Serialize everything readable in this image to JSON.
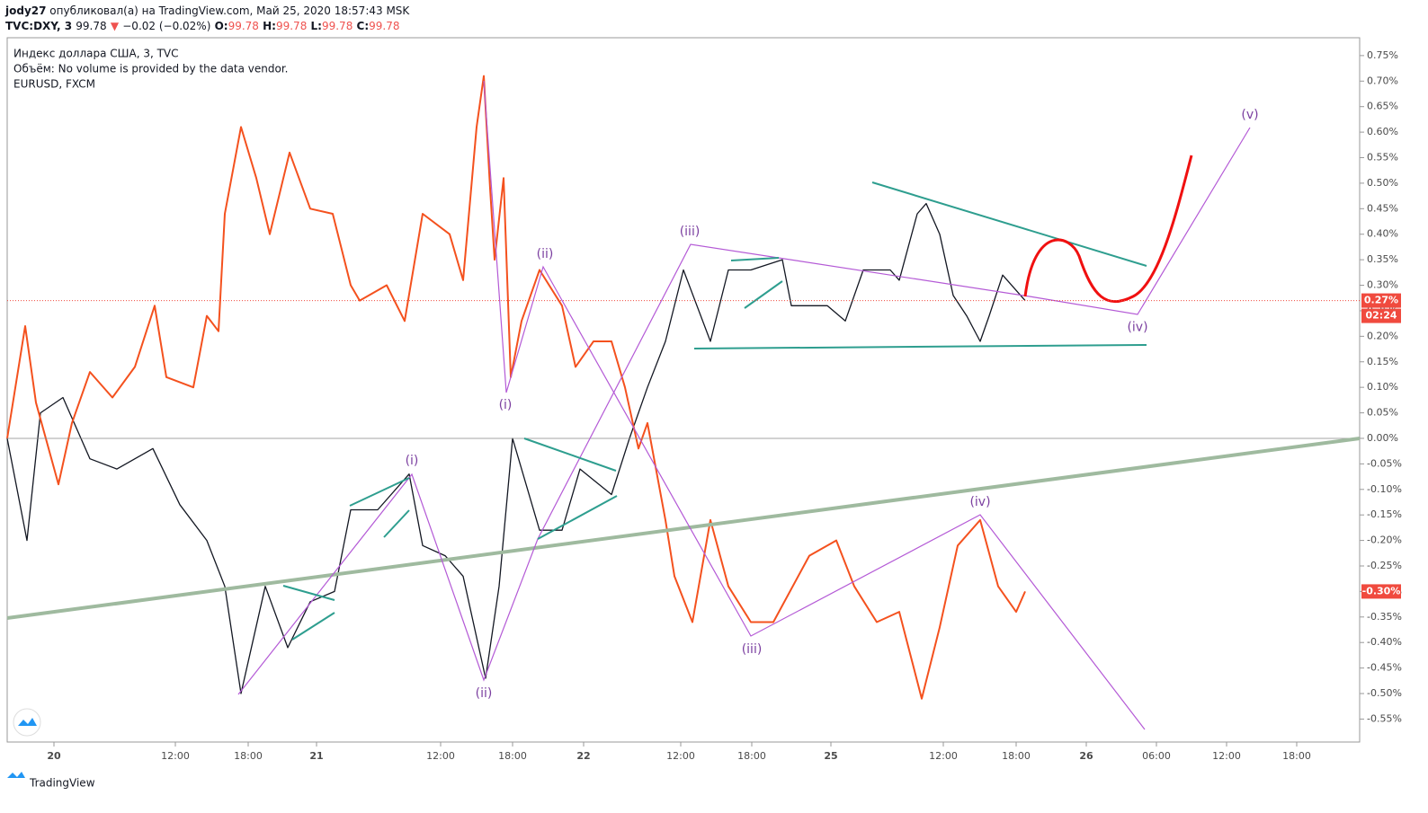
{
  "header": {
    "user": "jody27",
    "published": "опубликовал(а) на TradingView.com, Май 25, 2020 18:57:43 MSK",
    "symbol": "TVC:DXY, 3",
    "price": "99.78",
    "arrow": "▼",
    "change": "−0.02 (−0.02%)",
    "o_label": "O:",
    "o": "99.78",
    "h_label": "H:",
    "h": "99.78",
    "l_label": "L:",
    "l": "99.78",
    "c_label": "C:",
    "c": "99.78"
  },
  "legend": [
    "Индекс доллара США, 3, TVC",
    "Объём: No volume is provided by the data vendor.",
    "EURUSD, FXCM"
  ],
  "footer": "TradingView",
  "chart_data": {
    "type": "line",
    "xlim": [
      0,
      752
    ],
    "xticks": [
      {
        "value": 26,
        "label": "20"
      },
      {
        "value": 93.5,
        "label": "12:00"
      },
      {
        "value": 134,
        "label": "18:00"
      },
      {
        "value": 172,
        "label": "21"
      },
      {
        "value": 241,
        "label": "12:00"
      },
      {
        "value": 281,
        "label": "18:00"
      },
      {
        "value": 320.5,
        "label": "22"
      },
      {
        "value": 374.5,
        "label": "12:00"
      },
      {
        "value": 414,
        "label": "18:00"
      },
      {
        "value": 458,
        "label": "25"
      },
      {
        "value": 520.5,
        "label": "12:00"
      },
      {
        "value": 561,
        "label": "18:00"
      },
      {
        "value": 600,
        "label": "26"
      },
      {
        "value": 639,
        "label": "06:00"
      },
      {
        "value": 678,
        "label": "12:00"
      },
      {
        "value": 717,
        "label": "18:00"
      }
    ],
    "ylim": [
      -0.595,
      0.785
    ],
    "yticks": [
      {
        "value": 0.75,
        "label": "0.75%"
      },
      {
        "value": 0.7,
        "label": "0.70%"
      },
      {
        "value": 0.65,
        "label": "0.65%"
      },
      {
        "value": 0.6,
        "label": "0.60%"
      },
      {
        "value": 0.55,
        "label": "0.55%"
      },
      {
        "value": 0.5,
        "label": "0.50%"
      },
      {
        "value": 0.45,
        "label": "0.45%"
      },
      {
        "value": 0.4,
        "label": "0.40%"
      },
      {
        "value": 0.35,
        "label": "0.35%"
      },
      {
        "value": 0.3,
        "label": "0.30%"
      },
      {
        "value": 0.25,
        "label": "0.25%"
      },
      {
        "value": 0.2,
        "label": "0.20%"
      },
      {
        "value": 0.15,
        "label": "0.15%"
      },
      {
        "value": 0.1,
        "label": "0.10%"
      },
      {
        "value": 0.05,
        "label": "0.05%"
      },
      {
        "value": 0,
        "label": "0.00%"
      },
      {
        "value": -0.05,
        "label": "-0.05%"
      },
      {
        "value": -0.1,
        "label": "-0.10%"
      },
      {
        "value": -0.15,
        "label": "-0.15%"
      },
      {
        "value": -0.2,
        "label": "-0.20%"
      },
      {
        "value": -0.25,
        "label": "-0.25%"
      },
      {
        "value": -0.3,
        "label": "-0.30%"
      },
      {
        "value": -0.35,
        "label": "-0.35%"
      },
      {
        "value": -0.4,
        "label": "-0.40%"
      },
      {
        "value": -0.45,
        "label": "-0.45%"
      },
      {
        "value": -0.5,
        "label": "-0.50%"
      },
      {
        "value": -0.55,
        "label": "-0.55%"
      }
    ],
    "series": [
      {
        "name": "Индекс доллара США, 3, TVC",
        "color": "#131722",
        "x": [
          0,
          11,
          18.5,
          31,
          46,
          61,
          81,
          96,
          111,
          121,
          130,
          143.5,
          156,
          168.5,
          182,
          191,
          206,
          223.5,
          231,
          243.5,
          253.5,
          266,
          273.5,
          281,
          296,
          308.5,
          318.5,
          336,
          346,
          356,
          366,
          376,
          391,
          401,
          413.5,
          431,
          436,
          456,
          466,
          476,
          491,
          496,
          506,
          511,
          518.5,
          526,
          533.5,
          541,
          546,
          553.5,
          566
        ],
        "values": [
          0.0,
          -0.2,
          0.05,
          0.08,
          -0.04,
          -0.06,
          -0.02,
          -0.13,
          -0.2,
          -0.29,
          -0.5,
          -0.29,
          -0.41,
          -0.32,
          -0.3,
          -0.14,
          -0.14,
          -0.07,
          -0.21,
          -0.23,
          -0.27,
          -0.47,
          -0.29,
          0.0,
          -0.18,
          -0.18,
          -0.06,
          -0.11,
          0.0,
          0.1,
          0.19,
          0.33,
          0.19,
          0.33,
          0.33,
          0.35,
          0.26,
          0.26,
          0.23,
          0.33,
          0.33,
          0.31,
          0.44,
          0.46,
          0.4,
          0.28,
          0.24,
          0.19,
          0.24,
          0.32,
          0.27
        ]
      },
      {
        "name": "EURUSD, FXCM",
        "color": "#f4511e",
        "x": [
          0,
          10,
          16,
          28.5,
          36,
          46,
          58.5,
          71,
          82,
          88.5,
          103.5,
          111,
          117.5,
          121,
          130,
          138.5,
          146,
          157,
          168.5,
          181,
          191,
          196,
          211,
          221,
          231,
          246,
          253.5,
          261,
          265,
          268.5,
          271,
          276,
          280,
          286,
          296,
          308.5,
          316,
          326,
          336,
          343.5,
          351,
          356,
          366,
          371,
          381,
          391,
          401,
          413.5,
          426,
          446,
          461,
          471,
          483.5,
          496,
          508.5,
          518.5,
          528.5,
          541,
          551,
          561,
          566
        ],
        "values": [
          0.0,
          0.22,
          0.07,
          -0.09,
          0.03,
          0.13,
          0.08,
          0.14,
          0.26,
          0.12,
          0.1,
          0.24,
          0.21,
          0.44,
          0.61,
          0.51,
          0.4,
          0.56,
          0.45,
          0.44,
          0.3,
          0.27,
          0.3,
          0.23,
          0.44,
          0.4,
          0.31,
          0.61,
          0.71,
          0.49,
          0.35,
          0.51,
          0.12,
          0.23,
          0.33,
          0.26,
          0.14,
          0.19,
          0.19,
          0.1,
          -0.02,
          0.03,
          -0.16,
          -0.27,
          -0.36,
          -0.16,
          -0.29,
          -0.36,
          -0.36,
          -0.23,
          -0.2,
          -0.29,
          -0.36,
          -0.34,
          -0.51,
          -0.37,
          -0.21,
          -0.16,
          -0.29,
          -0.34,
          -0.3
        ]
      }
    ],
    "price_tags": [
      {
        "value": 0.27,
        "label": "0.27%",
        "color": "#f04a3e",
        "countdown": "02:24"
      },
      {
        "value": -0.3,
        "label": "-0.30%",
        "color": "#f04a3e"
      }
    ],
    "annotations": [
      {
        "text": "(v)",
        "x": 691,
        "y": 0.634
      },
      {
        "text": "(iv)",
        "x": 628.5,
        "y": 0.217
      },
      {
        "text": "(iii)",
        "x": 379.5,
        "y": 0.405
      },
      {
        "text": "(ii)",
        "x": 299,
        "y": 0.361
      },
      {
        "text": "(i)",
        "x": 277,
        "y": 0.065
      },
      {
        "text": "(i)",
        "x": 225,
        "y": -0.044
      },
      {
        "text": "(ii)",
        "x": 265,
        "y": -0.5
      },
      {
        "text": "(iii)",
        "x": 414,
        "y": -0.414
      },
      {
        "text": "(iv)",
        "x": 541,
        "y": -0.125
      }
    ]
  }
}
